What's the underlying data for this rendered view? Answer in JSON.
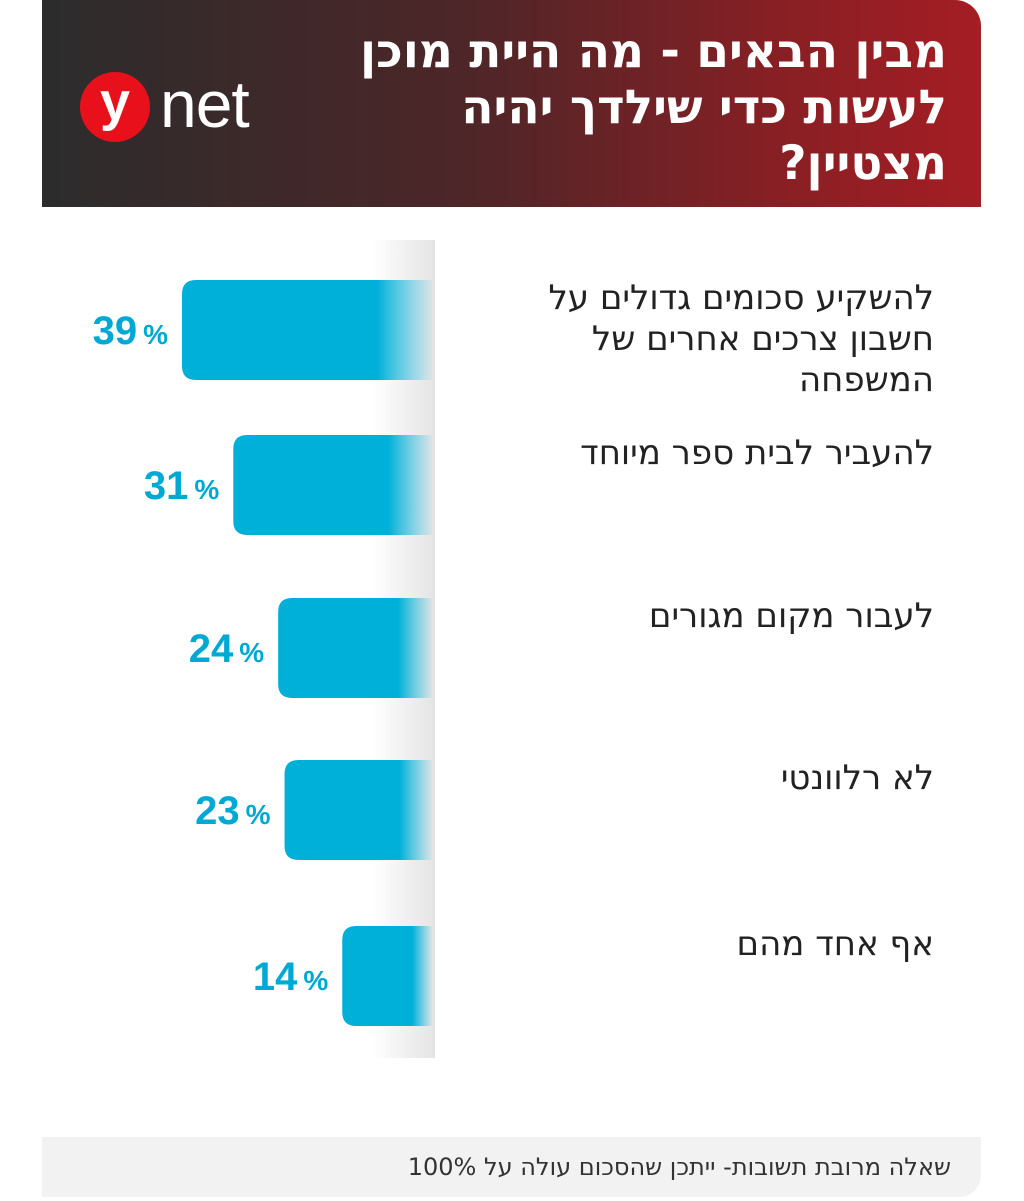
{
  "header": {
    "title": "מבין הבאים - מה היית מוכן לעשות כדי שילדך יהיה מצטיין?",
    "logo_mark": "y",
    "logo_text": "net",
    "brand_color": "#e8101a"
  },
  "chart_data": {
    "type": "bar",
    "orientation": "horizontal",
    "title": "מבין הבאים - מה היית מוכן לעשות כדי שילדך יהיה מצטיין?",
    "categories": [
      "להשקיע סכומים גדולים על חשבון צרכים אחרים של המשפחה",
      "להעביר לבית ספר מיוחד",
      "לעבור מקום מגורים",
      "לא רלוונטי",
      "אף אחד מהם"
    ],
    "values": [
      39,
      31,
      24,
      23,
      14
    ],
    "value_suffix": "%",
    "xlim": [
      0,
      39
    ],
    "bar_color": "#00b0d8",
    "label_color": "#00a9d4",
    "grid": false,
    "legend": "none"
  },
  "footer": {
    "note": "שאלה מרובת תשובות- ייתכן שהסכום עולה על 100%"
  }
}
